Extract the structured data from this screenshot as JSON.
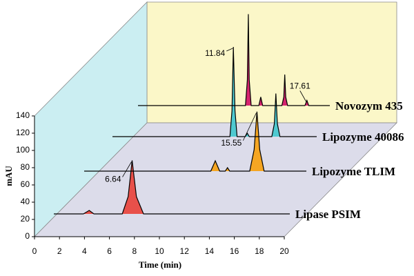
{
  "chart_data": {
    "type": "waterfall",
    "x_label": "Time (min)",
    "y_label": "mAU",
    "xlim": [
      0,
      20
    ],
    "xticks": [
      0,
      2,
      4,
      6,
      8,
      10,
      12,
      14,
      16,
      18,
      20
    ],
    "ylim": [
      0,
      140
    ],
    "yticks": [
      0,
      20,
      40,
      60,
      80,
      100,
      120,
      140
    ],
    "series": [
      {
        "name": "Lipase PSIM",
        "color": "#e8504a",
        "peak_label": "6.64",
        "x": [
          0,
          2.5,
          3.0,
          3.4,
          5.8,
          6.3,
          6.64,
          7.0,
          7.6,
          20
        ],
        "values": [
          0,
          0,
          4,
          0,
          0,
          20,
          62,
          20,
          0,
          0
        ]
      },
      {
        "name": "Lipozyme TLIM",
        "color": "#f5a623",
        "peak_label": "15.55",
        "x": [
          0,
          11.4,
          11.8,
          12.2,
          12.7,
          12.9,
          13.1,
          14.9,
          15.3,
          15.55,
          15.8,
          16.2,
          20
        ],
        "values": [
          0,
          0,
          12,
          0,
          0,
          4,
          0,
          0,
          25,
          69,
          25,
          0,
          0
        ]
      },
      {
        "name": "Lipozyme 40086",
        "color": "#4ec9d0",
        "peak_label": "11.84",
        "x": [
          0,
          11.5,
          11.7,
          11.84,
          12.0,
          12.2,
          13.0,
          13.2,
          13.4,
          15.6,
          15.85,
          16.0,
          16.15,
          16.4,
          20
        ],
        "values": [
          0,
          0,
          30,
          104,
          30,
          0,
          0,
          4,
          0,
          0,
          15,
          50,
          15,
          0,
          0
        ]
      },
      {
        "name": "Novozym 435",
        "color": "#d6246e",
        "peak_label": "17.61",
        "x": [
          0,
          11.2,
          11.4,
          11.5,
          11.6,
          11.8,
          12.6,
          12.8,
          13.0,
          15.0,
          15.2,
          15.3,
          15.4,
          15.6,
          17.4,
          17.61,
          17.8,
          20
        ],
        "values": [
          0,
          0,
          30,
          106,
          30,
          0,
          0,
          10,
          0,
          0,
          10,
          36,
          10,
          0,
          0,
          6,
          0,
          0
        ]
      }
    ]
  }
}
